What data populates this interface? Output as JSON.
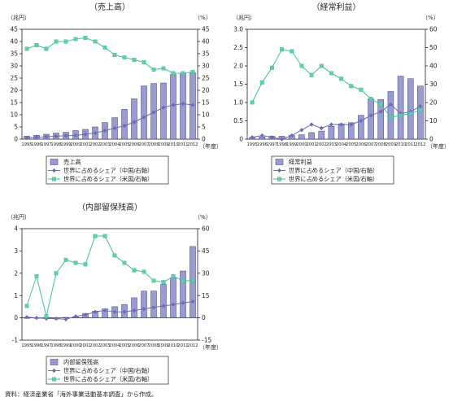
{
  "source_note": "資料：経済産業省「海外事業活動基本調査」から作成。",
  "chart_data": [
    {
      "type": "bar",
      "title": "（売上高）",
      "y_left_unit": "（兆円）",
      "y_right_unit": "（%）",
      "x_unit": "（年度）",
      "ylim_left": [
        0,
        45
      ],
      "ylim_right": [
        0,
        45
      ],
      "yticks_left": [
        0,
        5,
        10,
        15,
        20,
        25,
        30,
        35,
        40,
        45
      ],
      "yticks_right": [
        0,
        5,
        10,
        15,
        20,
        25,
        30,
        35,
        40,
        45
      ],
      "categories": [
        "1995",
        "1996",
        "1997",
        "1998",
        "1999",
        "2000",
        "2001",
        "2002",
        "2003",
        "2004",
        "2005",
        "2006",
        "2007",
        "2008",
        "2009",
        "2010",
        "2011",
        "2012"
      ],
      "series": [
        {
          "name": "売上高",
          "kind": "bar",
          "axis": "left",
          "values": [
            1.2,
            1.6,
            2.0,
            2.5,
            2.8,
            3.5,
            4.0,
            5.0,
            6.8,
            8.8,
            12.2,
            16.5,
            21.8,
            22.8,
            23.0,
            26.5,
            27.0,
            27.2
          ]
        },
        {
          "name": "世界に占めるシェア（中国/右軸）",
          "kind": "line",
          "marker": "diamond",
          "axis": "right",
          "values": [
            0.5,
            0.8,
            1.0,
            1.2,
            1.4,
            1.5,
            2.0,
            2.5,
            3.5,
            4.5,
            5.5,
            7.0,
            9.0,
            11.0,
            13.0,
            14.0,
            14.5,
            14.0
          ]
        },
        {
          "name": "世界に占めるシェア（米国/右軸）",
          "kind": "line",
          "marker": "square",
          "axis": "right",
          "values": [
            37,
            38.5,
            37,
            40,
            40,
            41,
            41.5,
            40,
            37.5,
            34.5,
            33.5,
            32.5,
            31.5,
            28.5,
            29,
            27,
            27,
            27.5
          ]
        }
      ]
    },
    {
      "type": "bar",
      "title": "（経常利益）",
      "y_left_unit": "（兆円）",
      "y_right_unit": "（%）",
      "x_unit": "（年度）",
      "ylim_left": [
        0,
        3.0
      ],
      "ylim_right": [
        0,
        60
      ],
      "yticks_left": [
        0,
        0.5,
        1.0,
        1.5,
        2.0,
        2.5,
        3.0
      ],
      "yticks_left_labels": [
        "0",
        "0.5",
        "1.0",
        "1.5",
        "2.0",
        "2.5",
        "3.0"
      ],
      "yticks_right": [
        0,
        10,
        20,
        30,
        40,
        50,
        60
      ],
      "categories": [
        "1995",
        "1996",
        "1997",
        "1998",
        "1999",
        "2000",
        "2001",
        "2002",
        "2003",
        "2004",
        "2005",
        "2006",
        "2007",
        "2008",
        "2009",
        "2010",
        "2011",
        "2012"
      ],
      "series": [
        {
          "name": "経常利益",
          "kind": "bar",
          "axis": "left",
          "values": [
            0.05,
            0.06,
            0.08,
            0.08,
            0.1,
            0.12,
            0.18,
            0.22,
            0.35,
            0.42,
            0.45,
            0.65,
            1.1,
            1.08,
            1.3,
            1.72,
            1.65,
            1.45
          ]
        },
        {
          "name": "世界に占めるシェア（中国/右軸）",
          "kind": "line",
          "marker": "diamond",
          "axis": "right",
          "values": [
            1,
            2,
            1,
            0,
            2,
            5,
            8,
            6,
            8,
            8,
            8,
            10,
            13,
            15,
            19,
            14,
            15,
            18
          ]
        },
        {
          "name": "世界に占めるシェア（米国/右軸）",
          "kind": "line",
          "marker": "square",
          "axis": "right",
          "values": [
            20,
            31,
            39,
            49,
            48,
            40,
            35,
            40,
            36,
            33,
            29,
            27,
            22,
            19,
            12,
            13,
            14,
            16
          ]
        }
      ]
    },
    {
      "type": "bar",
      "title": "（内部留保残高）",
      "y_left_unit": "（兆円）",
      "y_right_unit": "（%）",
      "x_unit": "（年度）",
      "ylim_left": [
        -1,
        4
      ],
      "ylim_right": [
        -15,
        60
      ],
      "yticks_left": [
        -1,
        0,
        1,
        2,
        3,
        4
      ],
      "yticks_right": [
        -15,
        0,
        15,
        30,
        45,
        60
      ],
      "categories": [
        "1995",
        "1996",
        "1997",
        "1998",
        "1999",
        "2000",
        "2001",
        "2002",
        "2003",
        "2004",
        "2005",
        "2006",
        "2007",
        "2008",
        "2009",
        "2010",
        "2011",
        "2012"
      ],
      "series": [
        {
          "name": "内部留保残高",
          "kind": "bar",
          "axis": "left",
          "values": [
            0.0,
            0.0,
            0.02,
            -0.05,
            0.02,
            0.05,
            0.2,
            0.3,
            0.4,
            0.5,
            0.6,
            0.9,
            1.2,
            1.2,
            1.5,
            1.8,
            2.1,
            3.2
          ]
        },
        {
          "name": "世界に占めるシェア（中国/右軸）",
          "kind": "line",
          "marker": "diamond",
          "axis": "right",
          "values": [
            0.5,
            0,
            -0.5,
            -0.5,
            -1,
            1,
            2,
            4,
            5,
            4,
            4,
            5,
            6,
            7,
            8,
            9,
            10,
            11
          ]
        },
        {
          "name": "世界に占めるシェア（米国/右軸）",
          "kind": "line",
          "marker": "square",
          "axis": "right",
          "values": [
            8,
            28,
            1,
            30,
            39,
            37,
            36,
            55,
            55,
            42,
            37,
            32,
            31,
            25,
            24,
            28,
            25,
            25
          ]
        }
      ]
    }
  ]
}
